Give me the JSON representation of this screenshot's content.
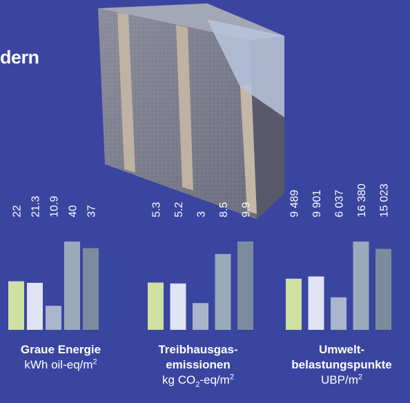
{
  "title_fragment": "dern",
  "colors": {
    "background": "#3a45a0",
    "bar_colors": [
      "#cfe0a3",
      "#dfe3f2",
      "#a9b5cc",
      "#9aaabb",
      "#7c8c9e"
    ]
  },
  "chart_data": [
    {
      "type": "bar",
      "title": "Graue Energie",
      "unit": "kWh oil-eq/m²",
      "values": [
        22,
        21.3,
        10.9,
        40,
        37
      ],
      "value_labels": [
        "22",
        "21.3",
        "10.9",
        "40",
        "37"
      ]
    },
    {
      "type": "bar",
      "title": "Treibhausgas-emissionen",
      "title_lines": [
        "Treibhausgas-",
        "emissionen"
      ],
      "unit": "kg CO₂-eq/m²",
      "values": [
        5.3,
        5.2,
        3,
        8.5,
        9.9
      ],
      "value_labels": [
        "5.3",
        "5.2",
        "3",
        "8.5",
        "9.9"
      ]
    },
    {
      "type": "bar",
      "title": "Umweltbelastungspunkte",
      "title_lines": [
        "Umwelt-",
        "belastungspunkte"
      ],
      "unit": "UBP/m²",
      "values": [
        9489,
        9901,
        6037,
        16380,
        15023
      ],
      "value_labels": [
        "9 489",
        "9 901",
        "6 037",
        "16 380",
        "15 023"
      ]
    }
  ]
}
